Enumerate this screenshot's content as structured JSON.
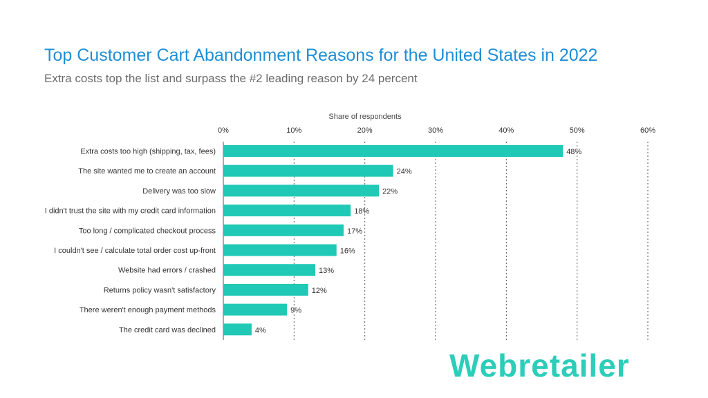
{
  "header": {
    "title": "Top Customer Cart Abandonment Reasons for the United States in 2022",
    "subtitle": "Extra costs top the list and surpass the #2 leading reason by 24 percent"
  },
  "brand": {
    "logo_text": "Webretailer",
    "color": "#2ccdb9"
  },
  "chart_data": {
    "type": "bar",
    "orientation": "horizontal",
    "xlabel": "Share of respondents",
    "xlim": [
      0,
      60
    ],
    "xticks": [
      "0%",
      "10%",
      "20%",
      "30%",
      "40%",
      "50%",
      "60%"
    ],
    "grid": "vertical dotted",
    "bar_color": "#20c9b5",
    "categories": [
      "Extra costs too high (shipping, tax, fees)",
      "The site wanted me to create an account",
      "Delivery was too slow",
      "I didn't trust the site with my credit card information",
      "Too long / complicated checkout process",
      "I couldn't see / calculate total order cost up-front",
      "Website had errors / crashed",
      "Returns policy wasn't satisfactory",
      "There weren't enough payment methods",
      "The credit card was declined"
    ],
    "values": [
      48,
      24,
      22,
      18,
      17,
      16,
      13,
      12,
      9,
      4
    ],
    "data_labels": [
      "48%",
      "24%",
      "22%",
      "18%",
      "17%",
      "16%",
      "13%",
      "12%",
      "9%",
      "4%"
    ]
  }
}
